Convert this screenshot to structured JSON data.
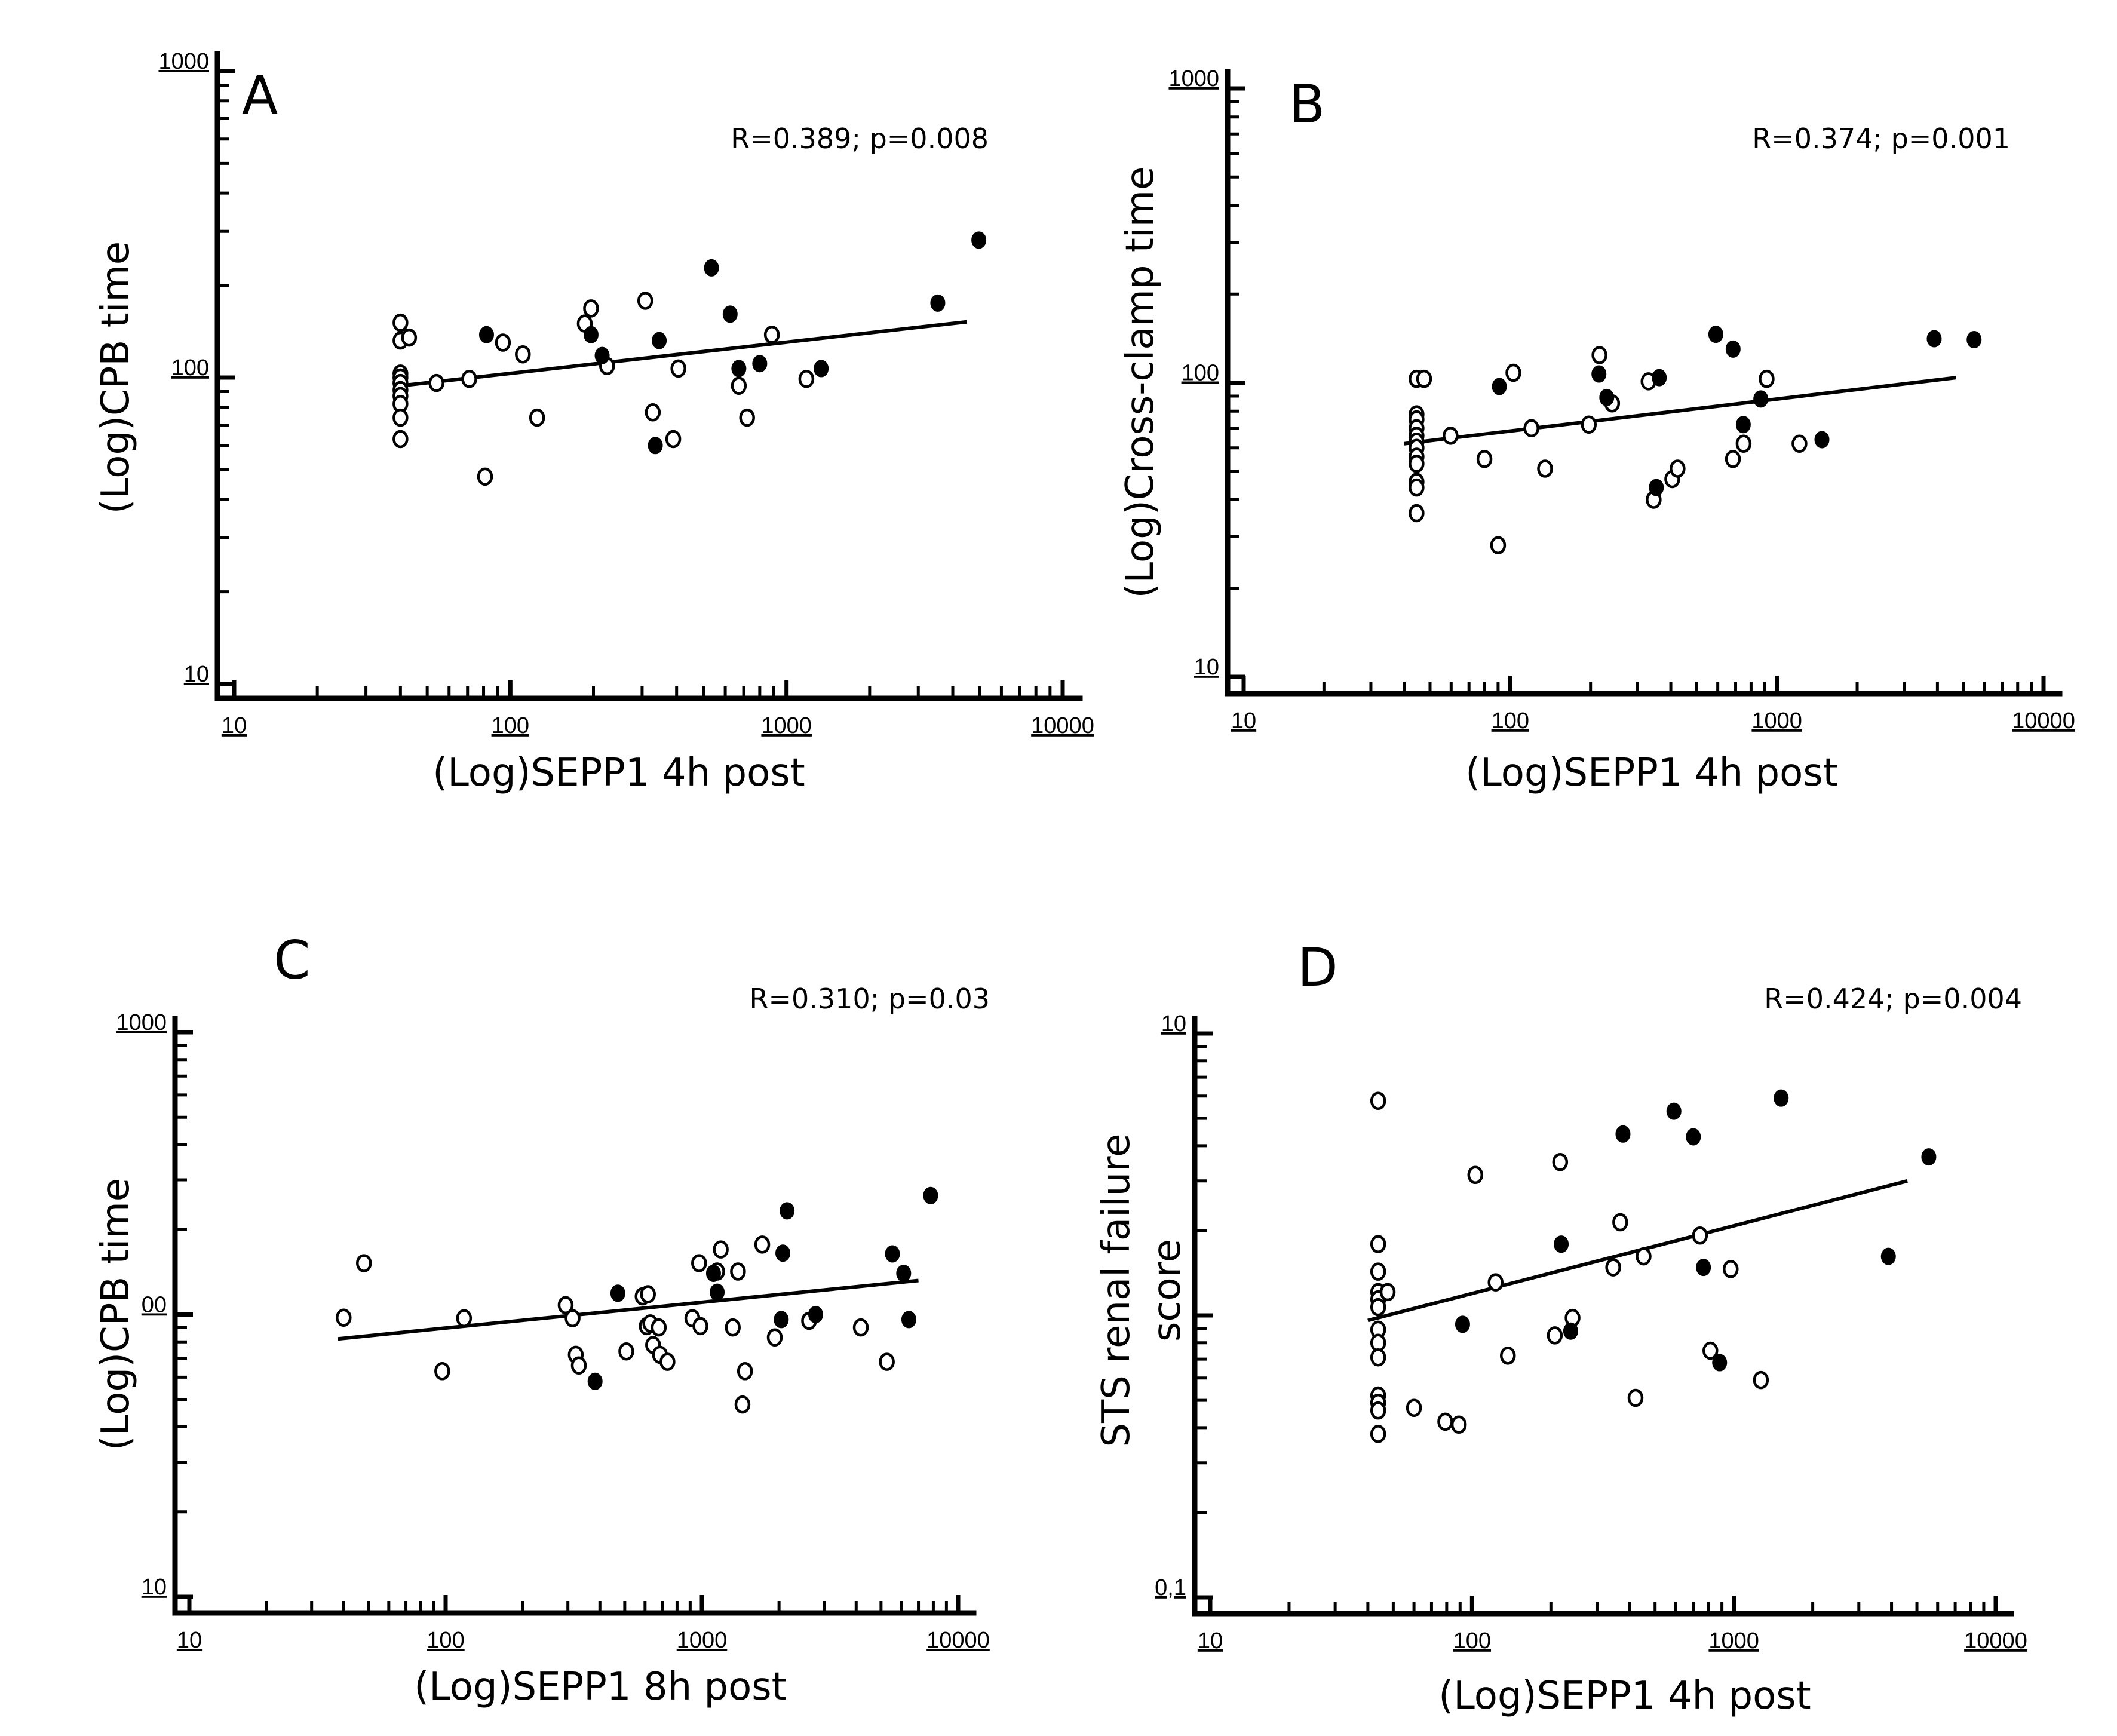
{
  "figure": {
    "colors": {
      "ink": "#000000",
      "background": "#ffffff",
      "open_marker_fill": "#ffffff"
    }
  },
  "chart_data": [
    {
      "id": "A",
      "type": "scatter",
      "panel_label": "A",
      "annotation": "R=0.389; p=0.008",
      "xlabel": "(Log)SEPP1 4h post",
      "ylabel": "(Log)CPB time",
      "xscale": "log",
      "yscale": "log",
      "xlim": [
        10,
        10000
      ],
      "ylim": [
        10,
        1000
      ],
      "xticks": [
        "10",
        "100",
        "1000",
        "10000"
      ],
      "yticks": [
        "10",
        "100",
        "1000"
      ],
      "series": [
        {
          "name": "open",
          "marker": "open-circle",
          "points": [
            [
              40,
              151
            ],
            [
              40,
              132
            ],
            [
              43,
              135
            ],
            [
              40,
              103
            ],
            [
              40,
              100
            ],
            [
              40,
              96
            ],
            [
              40,
              91
            ],
            [
              40,
              87
            ],
            [
              40,
              82
            ],
            [
              40,
              74
            ],
            [
              40,
              63
            ],
            [
              54,
              96
            ],
            [
              71,
              99
            ],
            [
              81,
              47.5
            ],
            [
              94,
              130
            ],
            [
              111,
              119
            ],
            [
              125,
              74
            ],
            [
              186,
              150
            ],
            [
              196,
              168
            ],
            [
              224,
              109
            ],
            [
              308,
              178
            ],
            [
              328,
              77
            ],
            [
              389,
              63
            ],
            [
              406,
              107
            ],
            [
              672,
              94
            ],
            [
              720,
              74
            ],
            [
              885,
              138
            ],
            [
              1180,
              99
            ]
          ]
        },
        {
          "name": "filled",
          "marker": "filled-circle",
          "points": [
            [
              82,
              138
            ],
            [
              196,
              138
            ],
            [
              215,
              118
            ],
            [
              346,
              132
            ],
            [
              335,
              60
            ],
            [
              535,
              228
            ],
            [
              625,
              161
            ],
            [
              672,
              107
            ],
            [
              800,
              111
            ],
            [
              1335,
              107
            ],
            [
              3530,
              175
            ],
            [
              4970,
              281
            ]
          ]
        }
      ],
      "fit_line": {
        "x": [
          40,
          4500
        ],
        "y": [
          94,
          152
        ]
      }
    },
    {
      "id": "B",
      "type": "scatter",
      "panel_label": "B",
      "annotation": "R=0.374; p=0.001",
      "xlabel": "(Log)SEPP1 4h post",
      "ylabel": "(Log)Cross-clamp time",
      "xscale": "log",
      "yscale": "log",
      "xlim": [
        10,
        10000
      ],
      "ylim": [
        10,
        1000
      ],
      "xticks": [
        "10",
        "100",
        "1000",
        "10000"
      ],
      "yticks": [
        "10",
        "100",
        "1000"
      ],
      "series": [
        {
          "name": "open",
          "marker": "open-circle",
          "points": [
            [
              44.5,
              103
            ],
            [
              47.5,
              103
            ],
            [
              44.5,
              78
            ],
            [
              44.5,
              75
            ],
            [
              44.5,
              70
            ],
            [
              44.5,
              66
            ],
            [
              44.5,
              63
            ],
            [
              44.5,
              60
            ],
            [
              44.5,
              56
            ],
            [
              44.5,
              53
            ],
            [
              44.5,
              46
            ],
            [
              44.5,
              44
            ],
            [
              44.5,
              36
            ],
            [
              59.7,
              66
            ],
            [
              80,
              55
            ],
            [
              90,
              28
            ],
            [
              102.7,
              108
            ],
            [
              120,
              70
            ],
            [
              135,
              51
            ],
            [
              197,
              72
            ],
            [
              216,
              124
            ],
            [
              241,
              85
            ],
            [
              330,
              101
            ],
            [
              345,
              40
            ],
            [
              405,
              47
            ],
            [
              424,
              51
            ],
            [
              684,
              55
            ],
            [
              750,
              62
            ],
            [
              915,
              103
            ],
            [
              1215,
              62
            ]
          ]
        },
        {
          "name": "filled",
          "marker": "filled-circle",
          "points": [
            [
              91,
              97
            ],
            [
              215,
              107
            ],
            [
              230,
              89
            ],
            [
              362,
              104
            ],
            [
              353,
              44
            ],
            [
              590,
              146
            ],
            [
              685,
              130
            ],
            [
              748,
              72
            ],
            [
              870,
              88
            ],
            [
              1475,
              64
            ],
            [
              3890,
              141
            ],
            [
              5490,
              140
            ]
          ]
        }
      ],
      "fit_line": {
        "x": [
          40,
          4700
        ],
        "y": [
          62,
          104
        ]
      }
    },
    {
      "id": "C",
      "type": "scatter",
      "panel_label": "C",
      "annotation": "R=0.310; p=0.03",
      "xlabel": "(Log)SEPP1 8h post",
      "ylabel": "(Log)CPB time",
      "xscale": "log",
      "yscale": "log",
      "xlim": [
        10,
        10000
      ],
      "ylim": [
        10,
        1000
      ],
      "xticks": [
        "10",
        "100",
        "1000",
        "10000"
      ],
      "yticks": [
        "10",
        "00",
        "1000"
      ],
      "series": [
        {
          "name": "open",
          "marker": "open-circle",
          "points": [
            [
              40,
              97.5
            ],
            [
              48,
              152
            ],
            [
              118,
              97
            ],
            [
              97,
              63
            ],
            [
              294,
              108
            ],
            [
              313,
              97
            ],
            [
              322,
              72
            ],
            [
              331,
              66
            ],
            [
              507,
              74
            ],
            [
              587,
              116
            ],
            [
              616,
              118
            ],
            [
              609,
              91
            ],
            [
              629,
              93
            ],
            [
              645,
              78
            ],
            [
              686,
              72
            ],
            [
              679,
              90
            ],
            [
              734,
              68
            ],
            [
              918,
              97
            ],
            [
              987,
              91
            ],
            [
              975,
              152
            ],
            [
              1147,
              142
            ],
            [
              1185,
              170
            ],
            [
              1320,
              90
            ],
            [
              1383,
              142
            ],
            [
              1473,
              63
            ],
            [
              1440,
              48
            ],
            [
              1720,
              177
            ],
            [
              1925,
              83
            ],
            [
              2620,
              95
            ],
            [
              4170,
              90
            ],
            [
              5270,
              68
            ]
          ]
        },
        {
          "name": "filled",
          "marker": "filled-circle",
          "points": [
            [
              470,
              119
            ],
            [
              383,
              58
            ],
            [
              1110,
              140
            ],
            [
              1147,
              120
            ],
            [
              2070,
              165
            ],
            [
              2150,
              233
            ],
            [
              2040,
              96
            ],
            [
              2780,
              100
            ],
            [
              5540,
              164
            ],
            [
              6130,
              140
            ],
            [
              6420,
              96
            ],
            [
              7810,
              264
            ]
          ]
        }
      ],
      "fit_line": {
        "x": [
          38,
          7000
        ],
        "y": [
          82,
          132
        ]
      }
    },
    {
      "id": "D",
      "type": "scatter",
      "panel_label": "D",
      "annotation": "R=0.424; p=0.004",
      "xlabel": "(Log)SEPP1 4h post",
      "ylabel": "STS renal failure score",
      "ylabel_lines": [
        "STS renal failure",
        "score"
      ],
      "xscale": "log",
      "yscale": "log",
      "xlim": [
        10,
        10000
      ],
      "ylim": [
        0.1,
        10
      ],
      "xticks": [
        "10",
        "100",
        "1000",
        "10000"
      ],
      "yticks": [
        "0,1",
        "",
        "10"
      ],
      "series": [
        {
          "name": "open",
          "marker": "open-circle",
          "points": [
            [
              43.8,
              5.77
            ],
            [
              43.8,
              1.79
            ],
            [
              43.8,
              1.43
            ],
            [
              43.8,
              1.21
            ],
            [
              43.8,
              1.14
            ],
            [
              43.8,
              1.07
            ],
            [
              43.8,
              0.89
            ],
            [
              43.8,
              0.8
            ],
            [
              43.8,
              0.71
            ],
            [
              43.8,
              0.52
            ],
            [
              43.8,
              0.49
            ],
            [
              43.8,
              0.46
            ],
            [
              43.8,
              0.38
            ],
            [
              47.6,
              1.21
            ],
            [
              60,
              0.47
            ],
            [
              79,
              0.42
            ],
            [
              89,
              0.41
            ],
            [
              102.9,
              3.15
            ],
            [
              123,
              1.31
            ],
            [
              137,
              0.72
            ],
            [
              207,
              0.85
            ],
            [
              217,
              3.5
            ],
            [
              242,
              0.98
            ],
            [
              346,
              1.48
            ],
            [
              368,
              2.14
            ],
            [
              421,
              0.51
            ],
            [
              452,
              1.62
            ],
            [
              742,
              1.92
            ],
            [
              813,
              0.75
            ],
            [
              972,
              1.46
            ],
            [
              1268,
              0.59
            ]
          ]
        },
        {
          "name": "filled",
          "marker": "filled-circle",
          "points": [
            [
              92,
              0.93
            ],
            [
              219,
              1.79
            ],
            [
              238,
              0.88
            ],
            [
              377,
              4.4
            ],
            [
              590,
              5.3
            ],
            [
              700,
              4.3
            ],
            [
              765,
              1.48
            ],
            [
              882,
              0.68
            ],
            [
              1515,
              5.9
            ],
            [
              3890,
              1.62
            ],
            [
              5550,
              3.65
            ]
          ]
        }
      ],
      "fit_line": {
        "x": [
          40,
          4600
        ],
        "y": [
          0.96,
          3.0
        ]
      }
    }
  ]
}
